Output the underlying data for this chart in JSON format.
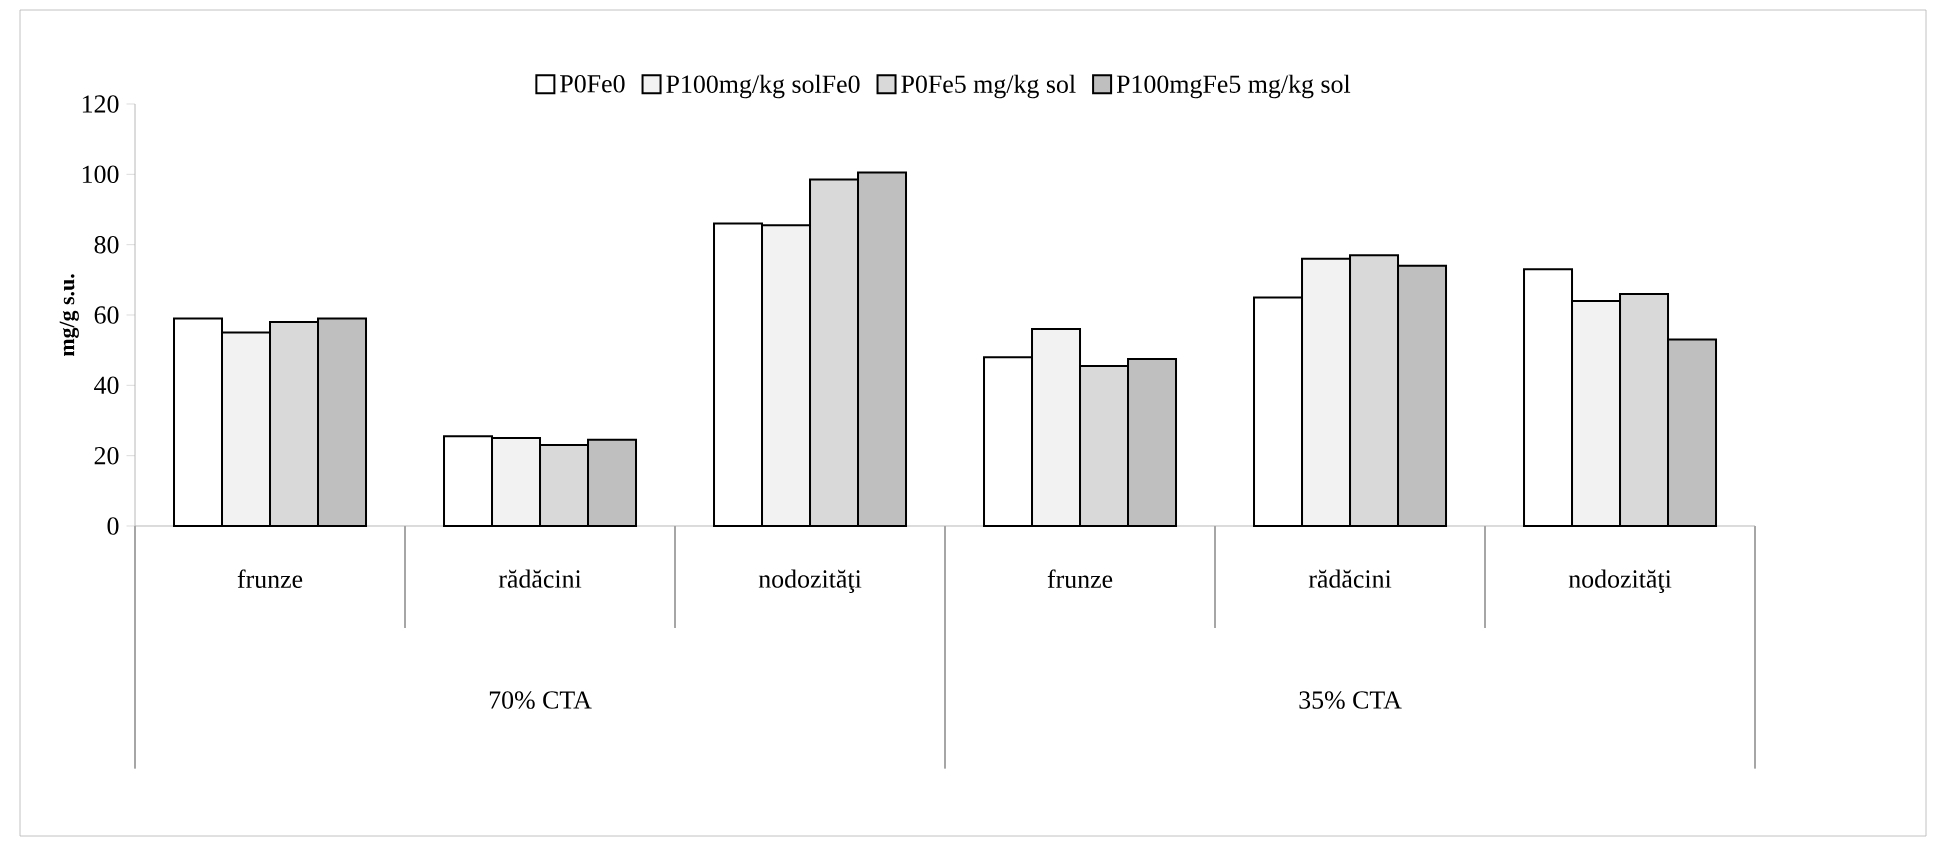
{
  "chart_data": {
    "type": "bar",
    "ylabel": "mg/g s.u.",
    "categories": [
      "frunze",
      "rădăcini",
      "nodozităţi",
      "frunze",
      "rădăcini",
      "nodozităţi"
    ],
    "series": [
      {
        "name": "P0Fe0",
        "color": "#ffffff",
        "values": [
          59,
          25.5,
          86,
          48,
          65,
          73
        ]
      },
      {
        "name": "P100mg/kg solFe0",
        "color": "#f2f2f2",
        "values": [
          55,
          25,
          85.5,
          56,
          76,
          64
        ]
      },
      {
        "name": "P0Fe5 mg/kg sol",
        "color": "#d9d9d9",
        "values": [
          58,
          23,
          98.5,
          45.5,
          77,
          66
        ]
      },
      {
        "name": "P100mgFe5 mg/kg sol",
        "color": "#bfbfbf",
        "values": [
          59,
          24.5,
          100.5,
          47.5,
          74,
          53
        ]
      }
    ],
    "annotations": [
      "70% CTA",
      "35% CTA"
    ],
    "ylim": [
      0,
      120
    ],
    "yticks": [
      0,
      20,
      40,
      60,
      80,
      100,
      120
    ],
    "grid": false,
    "legend": "top"
  }
}
